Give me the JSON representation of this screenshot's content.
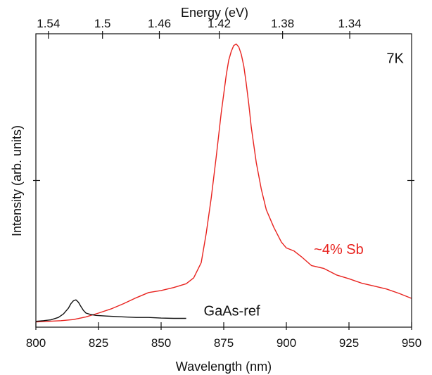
{
  "chart_data": {
    "type": "line",
    "xlabel": "Wavelength (nm)",
    "ylabel": "Intensity (arb. units)",
    "top_axis_label": "Energy (eV)",
    "xlim": [
      800,
      950
    ],
    "ylim": [
      0,
      1
    ],
    "x_ticks": [
      800,
      825,
      850,
      875,
      900,
      925,
      950
    ],
    "x_tick_labels": [
      "800",
      "825",
      "850",
      "875",
      "900",
      "925",
      "950"
    ],
    "top_ticks": [
      {
        "label": "1.54",
        "wavelength": 805.0
      },
      {
        "label": "1.5",
        "wavelength": 826.6
      },
      {
        "label": "1.46",
        "wavelength": 849.3
      },
      {
        "label": "1.42",
        "wavelength": 873.2
      },
      {
        "label": "1.38",
        "wavelength": 898.5
      },
      {
        "label": "1.34",
        "wavelength": 925.3
      }
    ],
    "grid": false,
    "annotations": [
      {
        "text": "7K",
        "x": 940,
        "y": 0.9
      },
      {
        "text": "~4% Sb",
        "x": 911,
        "y": 0.25,
        "color": "#e8231f"
      },
      {
        "text": "GaAs-ref",
        "x": 867,
        "y": 0.04,
        "color": "#111111"
      }
    ],
    "series": [
      {
        "name": "~4% Sb",
        "color": "#e8231f",
        "x": [
          800,
          805,
          810,
          815,
          820,
          825,
          830,
          835,
          840,
          845,
          850,
          855,
          860,
          863,
          866,
          868,
          870,
          872,
          874,
          876,
          877,
          878,
          879,
          880,
          881,
          882,
          883,
          884,
          885,
          886,
          888,
          890,
          892,
          895,
          898,
          900,
          903,
          906,
          910,
          915,
          920,
          925,
          930,
          935,
          940,
          945,
          950
        ],
        "y": [
          0.018,
          0.02,
          0.022,
          0.026,
          0.035,
          0.048,
          0.062,
          0.08,
          0.1,
          0.118,
          0.125,
          0.135,
          0.148,
          0.168,
          0.22,
          0.32,
          0.44,
          0.58,
          0.73,
          0.86,
          0.91,
          0.94,
          0.96,
          0.965,
          0.955,
          0.93,
          0.89,
          0.83,
          0.76,
          0.68,
          0.56,
          0.47,
          0.4,
          0.34,
          0.29,
          0.27,
          0.26,
          0.24,
          0.21,
          0.2,
          0.178,
          0.165,
          0.15,
          0.14,
          0.13,
          0.115,
          0.098
        ]
      },
      {
        "name": "GaAs-ref",
        "color": "#111111",
        "x": [
          800,
          803,
          806,
          809,
          811,
          813,
          814,
          815,
          816,
          817,
          818,
          819,
          820,
          822,
          824,
          828,
          835,
          840,
          845,
          850,
          855,
          860
        ],
        "y": [
          0.02,
          0.022,
          0.025,
          0.033,
          0.045,
          0.065,
          0.08,
          0.09,
          0.093,
          0.085,
          0.07,
          0.057,
          0.048,
          0.043,
          0.04,
          0.038,
          0.035,
          0.033,
          0.033,
          0.031,
          0.03,
          0.03
        ]
      }
    ]
  }
}
